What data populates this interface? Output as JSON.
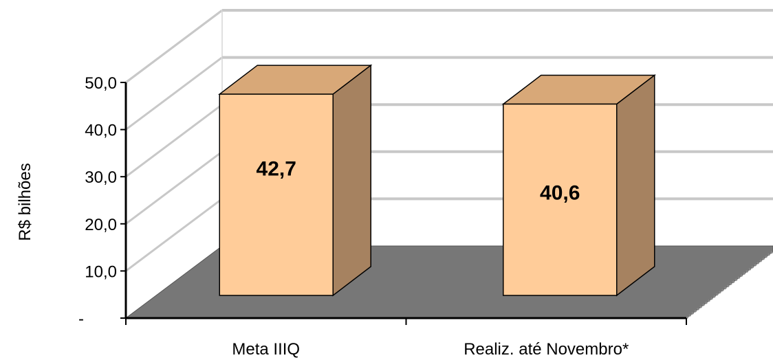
{
  "chart_data": {
    "type": "bar",
    "categories": [
      "Meta IIIQ",
      "Realiz. até Novembro*"
    ],
    "values": [
      42.7,
      40.6
    ],
    "data_labels": [
      "42,7",
      "40,6"
    ],
    "ylabel": "R$ bilhões",
    "ylim": [
      0,
      50
    ],
    "yticks": [
      {
        "value": 0,
        "label": "-"
      },
      {
        "value": 10,
        "label": "10,0"
      },
      {
        "value": 20,
        "label": "20,0"
      },
      {
        "value": 30,
        "label": "30,0"
      },
      {
        "value": 40,
        "label": "40,0"
      },
      {
        "value": 50,
        "label": "50,0"
      }
    ],
    "grid": true,
    "style": "3d",
    "colors": {
      "bar_front": "#ffcc99",
      "bar_top": "#d8a878",
      "bar_side": "#a68260",
      "floor": "#777777",
      "gridline": "#c8c8c8"
    }
  }
}
